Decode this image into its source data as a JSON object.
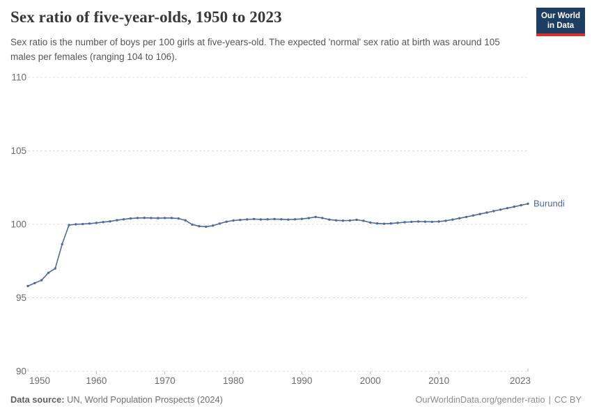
{
  "header": {
    "title": "Sex ratio of five-year-olds, 1950 to 2023",
    "subtitle": "Sex ratio is the number of boys per 100 girls at five-years-old. The expected 'normal' sex ratio at birth was around 105 males per females (ranging 104 to 106)."
  },
  "logo": {
    "line1": "Our World",
    "line2": "in Data",
    "bg_color": "#1d3d63",
    "stripe_color": "#d0342c"
  },
  "chart_data": {
    "type": "line",
    "title": "Sex ratio of five-year-olds, 1950 to 2023",
    "entity_label": "Burundi",
    "xlabel": "",
    "ylabel": "",
    "ylim": [
      90,
      110
    ],
    "yticks": [
      90,
      95,
      100,
      105,
      110
    ],
    "xticks": [
      1950,
      1960,
      1970,
      1980,
      1990,
      2000,
      2010,
      2023
    ],
    "grid": "dashed-horizontal",
    "legend": "end-of-line-label",
    "x": [
      1950,
      1951,
      1952,
      1953,
      1954,
      1955,
      1956,
      1957,
      1958,
      1959,
      1960,
      1961,
      1962,
      1963,
      1964,
      1965,
      1966,
      1967,
      1968,
      1969,
      1970,
      1971,
      1972,
      1973,
      1974,
      1975,
      1976,
      1977,
      1978,
      1979,
      1980,
      1981,
      1982,
      1983,
      1984,
      1985,
      1986,
      1987,
      1988,
      1989,
      1990,
      1991,
      1992,
      1993,
      1994,
      1995,
      1996,
      1997,
      1998,
      1999,
      2000,
      2001,
      2002,
      2003,
      2004,
      2005,
      2006,
      2007,
      2008,
      2009,
      2010,
      2011,
      2012,
      2013,
      2014,
      2015,
      2016,
      2017,
      2018,
      2019,
      2020,
      2021,
      2022,
      2023
    ],
    "series": [
      {
        "name": "Burundi",
        "color": "#4c6a9c",
        "values": [
          95.8,
          96.0,
          96.2,
          96.7,
          97.0,
          98.65,
          99.95,
          100.0,
          100.02,
          100.05,
          100.1,
          100.15,
          100.2,
          100.28,
          100.34,
          100.4,
          100.43,
          100.44,
          100.43,
          100.42,
          100.43,
          100.43,
          100.4,
          100.27,
          99.98,
          99.87,
          99.84,
          99.91,
          100.05,
          100.18,
          100.26,
          100.3,
          100.33,
          100.36,
          100.33,
          100.34,
          100.36,
          100.34,
          100.32,
          100.34,
          100.37,
          100.42,
          100.5,
          100.43,
          100.32,
          100.27,
          100.25,
          100.26,
          100.31,
          100.24,
          100.12,
          100.06,
          100.04,
          100.06,
          100.1,
          100.14,
          100.17,
          100.19,
          100.18,
          100.17,
          100.19,
          100.24,
          100.32,
          100.41,
          100.5,
          100.6,
          100.7,
          100.8,
          100.9,
          101.0,
          101.1,
          101.2,
          101.3,
          101.4
        ]
      }
    ],
    "colors": {
      "line": "#4c6a9c",
      "grid": "#dcdcdc",
      "tick_mark": "#b5b5b5",
      "axis_text": "#6b6b6b"
    }
  },
  "footer": {
    "source_label": "Data source:",
    "source_text": "UN, World Population Prospects (2024)",
    "link_text": "OurWorldinData.org/gender-ratio",
    "separator": "|",
    "license_text": "CC BY"
  }
}
